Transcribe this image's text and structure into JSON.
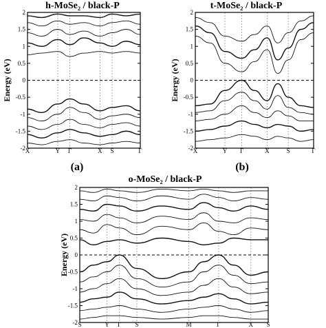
{
  "figure": {
    "panel_labels": [
      "(a)",
      "(b)"
    ]
  },
  "chart_data": [
    {
      "type": "line",
      "title": "h-MoSe₂ / black-P",
      "ylabel": "Energy (eV)",
      "ylim": [
        -2,
        2
      ],
      "yticks": [
        "2",
        "1.5",
        "1",
        "0.5",
        "0",
        "-0.5",
        "-1",
        "-1.5",
        "-2"
      ],
      "kpoints": [
        "X",
        "Y",
        "Γ",
        "X",
        "S",
        "Γ"
      ],
      "kpoint_positions": [
        0,
        1.5,
        2.1,
        3.6,
        4.2,
        5.6
      ],
      "reference_line": 0,
      "bands": [
        {
          "name": "",
          "x": [
            0,
            0.7,
            1.5,
            2.1,
            2.8,
            3.6,
            4.2,
            4.9,
            5.6
          ],
          "y": [
            -0.85,
            -0.95,
            -0.7,
            -0.55,
            -0.7,
            -0.9,
            -0.8,
            -0.75,
            -0.9
          ]
        },
        {
          "name": "",
          "x": [
            0,
            0.7,
            1.5,
            2.1,
            2.8,
            3.6,
            4.2,
            4.9,
            5.6
          ],
          "y": [
            -1.1,
            -1.2,
            -1.0,
            -0.8,
            -0.95,
            -1.15,
            -1.05,
            -1.0,
            -1.1
          ]
        },
        {
          "name": "",
          "x": [
            0,
            0.7,
            1.5,
            2.1,
            2.8,
            3.6,
            4.2,
            4.9,
            5.6
          ],
          "y": [
            -1.35,
            -1.45,
            -1.3,
            -1.15,
            -1.3,
            -1.4,
            -1.3,
            -1.25,
            -1.35
          ]
        },
        {
          "name": "",
          "x": [
            0,
            0.7,
            1.5,
            2.1,
            2.8,
            3.6,
            4.2,
            4.9,
            5.6
          ],
          "y": [
            -1.6,
            -1.7,
            -1.55,
            -1.45,
            -1.55,
            -1.65,
            -1.6,
            -1.5,
            -1.6
          ]
        },
        {
          "name": "",
          "x": [
            0,
            0.7,
            1.5,
            2.1,
            2.8,
            3.6,
            4.2,
            4.9,
            5.6
          ],
          "y": [
            -1.85,
            -1.9,
            -1.8,
            -1.75,
            -1.85,
            -1.9,
            -1.85,
            -1.8,
            -1.85
          ]
        },
        {
          "name": "",
          "x": [
            0,
            0.7,
            1.5,
            2.1,
            2.8,
            3.6,
            4.2,
            4.9,
            5.6
          ],
          "y": [
            0.75,
            0.8,
            0.85,
            0.7,
            0.8,
            0.85,
            0.8,
            0.85,
            0.8
          ]
        },
        {
          "name": "",
          "x": [
            0,
            0.7,
            1.5,
            2.1,
            2.8,
            3.6,
            4.2,
            4.9,
            5.6
          ],
          "y": [
            1.1,
            1.0,
            1.2,
            1.05,
            1.25,
            1.1,
            1.0,
            1.15,
            1.05
          ]
        },
        {
          "name": "",
          "x": [
            0,
            0.7,
            1.5,
            2.1,
            2.8,
            3.6,
            4.2,
            4.9,
            5.6
          ],
          "y": [
            1.4,
            1.3,
            1.5,
            1.35,
            1.45,
            1.3,
            1.4,
            1.5,
            1.35
          ]
        },
        {
          "name": "",
          "x": [
            0,
            0.7,
            1.5,
            2.1,
            2.8,
            3.6,
            4.2,
            4.9,
            5.6
          ],
          "y": [
            1.7,
            1.6,
            1.75,
            1.65,
            1.7,
            1.6,
            1.7,
            1.75,
            1.65
          ]
        },
        {
          "name": "",
          "x": [
            0,
            0.7,
            1.5,
            2.1,
            2.8,
            3.6,
            4.2,
            4.9,
            5.6
          ],
          "y": [
            1.9,
            1.85,
            1.95,
            1.9,
            1.9,
            1.85,
            1.95,
            1.9,
            1.95
          ]
        }
      ]
    },
    {
      "type": "line",
      "title": "t-MoSe₂ / black-P",
      "ylabel": "Energy (eV)",
      "ylim": [
        -2,
        2
      ],
      "yticks": [
        "2",
        "1.5",
        "1",
        "0.5",
        "0",
        "-0.5",
        "-1",
        "-1.5",
        "-2"
      ],
      "kpoints": [
        "X",
        "Y",
        "Γ",
        "X",
        "S",
        "Γ"
      ],
      "kpoint_positions": [
        0,
        1.4,
        2.2,
        3.4,
        4.4,
        5.6
      ],
      "reference_line": 0,
      "bands": [
        {
          "name": "",
          "x": [
            0,
            0.7,
            1.4,
            2.2,
            2.8,
            3.4,
            3.9,
            4.4,
            5.0,
            5.6
          ],
          "y": [
            -0.75,
            -0.7,
            -0.3,
            0.0,
            -0.3,
            -0.6,
            -0.1,
            -0.5,
            -0.75,
            -0.8
          ]
        },
        {
          "name": "",
          "x": [
            0,
            0.7,
            1.4,
            2.2,
            2.8,
            3.4,
            3.9,
            4.4,
            5.0,
            5.6
          ],
          "y": [
            -0.95,
            -0.9,
            -0.6,
            -0.35,
            -0.6,
            -0.85,
            -0.45,
            -0.8,
            -0.95,
            -1.0
          ]
        },
        {
          "name": "",
          "x": [
            0,
            0.7,
            1.4,
            2.2,
            2.8,
            3.4,
            3.9,
            4.4,
            5.0,
            5.6
          ],
          "y": [
            -1.2,
            -1.15,
            -1.0,
            -0.75,
            -0.95,
            -1.1,
            -0.9,
            -1.05,
            -1.2,
            -1.2
          ]
        },
        {
          "name": "",
          "x": [
            0,
            0.7,
            1.4,
            2.2,
            2.8,
            3.4,
            3.9,
            4.4,
            5.0,
            5.6
          ],
          "y": [
            -1.5,
            -1.45,
            -1.35,
            -1.2,
            -1.3,
            -1.4,
            -1.3,
            -1.35,
            -1.5,
            -1.45
          ]
        },
        {
          "name": "",
          "x": [
            0,
            0.7,
            1.4,
            2.2,
            2.8,
            3.4,
            3.9,
            4.4,
            5.0,
            5.6
          ],
          "y": [
            -1.8,
            -1.75,
            -1.7,
            -1.6,
            -1.65,
            -1.75,
            -1.65,
            -1.7,
            -1.8,
            -1.75
          ]
        },
        {
          "name": "",
          "x": [
            0,
            0.7,
            1.4,
            2.2,
            2.8,
            3.4,
            3.9,
            4.4,
            5.0,
            5.6
          ],
          "y": [
            1.3,
            1.1,
            0.5,
            0.25,
            0.55,
            0.9,
            0.2,
            0.6,
            1.2,
            1.4
          ]
        },
        {
          "name": "",
          "x": [
            0,
            0.7,
            1.4,
            2.2,
            2.8,
            3.4,
            3.9,
            4.4,
            5.0,
            5.6
          ],
          "y": [
            1.6,
            1.4,
            0.85,
            0.65,
            0.9,
            1.25,
            0.6,
            0.95,
            1.5,
            1.7
          ]
        },
        {
          "name": "",
          "x": [
            0,
            0.7,
            1.4,
            2.2,
            2.8,
            3.4,
            3.9,
            4.4,
            5.0,
            5.6
          ],
          "y": [
            1.85,
            1.7,
            1.3,
            1.15,
            1.35,
            1.6,
            1.1,
            1.4,
            1.75,
            1.9
          ]
        }
      ]
    },
    {
      "type": "line",
      "title": "o-MoSe₂ / black-P",
      "ylabel": "Energy (eV)",
      "ylim": [
        -2,
        2
      ],
      "yticks": [
        "2",
        "1.5",
        "1",
        "0.5",
        "0",
        "-0.5",
        "-1",
        "-1.5",
        "-2"
      ],
      "kpoints": [
        "S",
        "Y",
        "Γ",
        "S",
        "M",
        "Γ",
        "X",
        "S"
      ],
      "kpoint_positions": [
        0,
        1.1,
        1.6,
        2.3,
        4.4,
        5.6,
        6.9,
        7.6
      ],
      "reference_line": 0,
      "bands": [
        {
          "name": "",
          "x": [
            0,
            0.55,
            1.1,
            1.6,
            2.3,
            3.3,
            4.4,
            5.0,
            5.6,
            6.2,
            6.9,
            7.6
          ],
          "y": [
            -0.5,
            -0.3,
            -0.2,
            0.0,
            -0.4,
            -0.7,
            -0.5,
            -0.2,
            0.0,
            -0.3,
            -0.6,
            -0.5
          ]
        },
        {
          "name": "",
          "x": [
            0,
            0.55,
            1.1,
            1.6,
            2.3,
            3.3,
            4.4,
            5.0,
            5.6,
            6.2,
            6.9,
            7.6
          ],
          "y": [
            -0.8,
            -0.65,
            -0.5,
            -0.3,
            -0.7,
            -0.95,
            -0.8,
            -0.5,
            -0.3,
            -0.6,
            -0.85,
            -0.8
          ]
        },
        {
          "name": "",
          "x": [
            0,
            0.55,
            1.1,
            1.6,
            2.3,
            3.3,
            4.4,
            5.0,
            5.6,
            6.2,
            6.9,
            7.6
          ],
          "y": [
            -1.1,
            -1.0,
            -0.85,
            -0.7,
            -1.0,
            -1.2,
            -1.1,
            -0.9,
            -0.7,
            -0.95,
            -1.15,
            -1.1
          ]
        },
        {
          "name": "",
          "x": [
            0,
            0.55,
            1.1,
            1.6,
            2.3,
            3.3,
            4.4,
            5.0,
            5.6,
            6.2,
            6.9,
            7.6
          ],
          "y": [
            -1.4,
            -1.3,
            -1.25,
            -1.1,
            -1.3,
            -1.45,
            -1.35,
            -1.25,
            -1.15,
            -1.3,
            -1.45,
            -1.4
          ]
        },
        {
          "name": "",
          "x": [
            0,
            0.55,
            1.1,
            1.6,
            2.3,
            3.3,
            4.4,
            5.0,
            5.6,
            6.2,
            6.9,
            7.6
          ],
          "y": [
            -1.65,
            -1.6,
            -1.55,
            -1.5,
            -1.6,
            -1.7,
            -1.6,
            -1.55,
            -1.5,
            -1.6,
            -1.7,
            -1.65
          ]
        },
        {
          "name": "",
          "x": [
            0,
            0.55,
            1.1,
            1.6,
            2.3,
            3.3,
            4.4,
            5.0,
            5.6,
            6.2,
            6.9,
            7.6
          ],
          "y": [
            -1.9,
            -1.85,
            -1.8,
            -1.8,
            -1.85,
            -1.9,
            -1.85,
            -1.8,
            -1.8,
            -1.85,
            -1.9,
            -1.9
          ]
        },
        {
          "name": "",
          "x": [
            0,
            0.55,
            1.1,
            1.6,
            2.3,
            3.3,
            4.4,
            5.0,
            5.6,
            6.2,
            6.9,
            7.6
          ],
          "y": [
            0.45,
            0.3,
            0.4,
            0.45,
            0.35,
            0.5,
            0.4,
            0.3,
            0.35,
            0.5,
            0.45,
            0.45
          ]
        },
        {
          "name": "",
          "x": [
            0,
            0.55,
            1.1,
            1.6,
            2.3,
            3.3,
            4.4,
            5.0,
            5.6,
            6.2,
            6.9,
            7.6
          ],
          "y": [
            0.75,
            0.65,
            0.9,
            0.8,
            0.6,
            0.85,
            0.75,
            0.95,
            0.7,
            0.6,
            0.8,
            0.75
          ]
        },
        {
          "name": "",
          "x": [
            0,
            0.55,
            1.1,
            1.6,
            2.3,
            3.3,
            4.4,
            5.0,
            5.6,
            6.2,
            6.9,
            7.6
          ],
          "y": [
            1.05,
            1.0,
            1.2,
            1.1,
            0.95,
            1.15,
            1.05,
            1.25,
            1.0,
            0.95,
            1.1,
            1.05
          ]
        },
        {
          "name": "",
          "x": [
            0,
            0.55,
            1.1,
            1.6,
            2.3,
            3.3,
            4.4,
            5.0,
            5.6,
            6.2,
            6.9,
            7.6
          ],
          "y": [
            1.35,
            1.3,
            1.5,
            1.45,
            1.3,
            1.45,
            1.35,
            1.55,
            1.4,
            1.3,
            1.45,
            1.35
          ]
        },
        {
          "name": "",
          "x": [
            0,
            0.55,
            1.1,
            1.6,
            2.3,
            3.3,
            4.4,
            5.0,
            5.6,
            6.2,
            6.9,
            7.6
          ],
          "y": [
            1.65,
            1.6,
            1.75,
            1.7,
            1.6,
            1.75,
            1.65,
            1.8,
            1.7,
            1.6,
            1.7,
            1.65
          ]
        },
        {
          "name": "",
          "x": [
            0,
            0.55,
            1.1,
            1.6,
            2.3,
            3.3,
            4.4,
            5.0,
            5.6,
            6.2,
            6.9,
            7.6
          ],
          "y": [
            1.9,
            1.85,
            1.95,
            1.9,
            1.85,
            1.95,
            1.9,
            1.95,
            1.9,
            1.85,
            1.9,
            1.9
          ]
        }
      ]
    }
  ]
}
